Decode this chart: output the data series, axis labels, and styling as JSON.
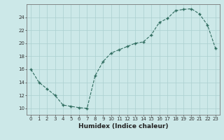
{
  "title": "",
  "xlabel": "Humidex (Indice chaleur)",
  "x": [
    0,
    1,
    2,
    3,
    4,
    5,
    6,
    7,
    8,
    9,
    10,
    11,
    12,
    13,
    14,
    15,
    16,
    17,
    18,
    19,
    20,
    21,
    22,
    23
  ],
  "y": [
    16,
    14,
    13,
    12,
    10.5,
    10.3,
    10.1,
    10.0,
    15.0,
    17.2,
    18.5,
    19.0,
    19.5,
    20.0,
    20.2,
    21.3,
    23.2,
    23.8,
    25.0,
    25.2,
    25.3,
    24.5,
    22.8,
    19.2
  ],
  "line_color": "#2e6b5e",
  "marker": "+",
  "marker_size": 3.5,
  "marker_lw": 1.0,
  "line_width": 0.8,
  "bg_color": "#cce8e8",
  "grid_color": "#aacfcf",
  "ylim": [
    9,
    26
  ],
  "yticks": [
    10,
    12,
    14,
    16,
    18,
    20,
    22,
    24
  ],
  "xlim": [
    -0.5,
    23.5
  ],
  "xticks": [
    0,
    1,
    2,
    3,
    4,
    5,
    6,
    7,
    8,
    9,
    10,
    11,
    12,
    13,
    14,
    15,
    16,
    17,
    18,
    19,
    20,
    21,
    22,
    23
  ],
  "xlabel_fontsize": 6.5,
  "tick_fontsize": 5.0
}
